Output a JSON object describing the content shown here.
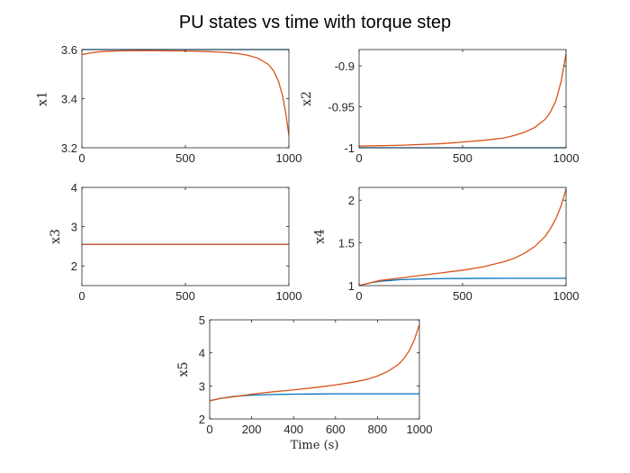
{
  "figure": {
    "title": "PU states vs time with torque step"
  },
  "colors": {
    "series1": "#0072BD",
    "series2": "#D95319",
    "axis": "#262626"
  },
  "chart_data": [
    {
      "type": "line",
      "ylabel": "x1",
      "xlabel": "",
      "xlim": [
        0,
        1000
      ],
      "ylim": [
        3.2,
        3.6
      ],
      "xticks": [
        0,
        500,
        1000
      ],
      "yticks": [
        3.2,
        3.4,
        3.6
      ],
      "xtick_labels": [
        "0",
        "500",
        "1000"
      ],
      "ytick_labels": [
        "3.2",
        "3.4",
        "3.6"
      ],
      "series": [
        {
          "x": [
            0,
            1000
          ],
          "y": [
            3.6,
            3.6
          ]
        },
        {
          "x": [
            0,
            50,
            100,
            200,
            300,
            400,
            500,
            600,
            700,
            750,
            800,
            850,
            900,
            925,
            950,
            970,
            985,
            1000
          ],
          "y": [
            3.58,
            3.587,
            3.592,
            3.595,
            3.596,
            3.595,
            3.594,
            3.592,
            3.588,
            3.584,
            3.577,
            3.565,
            3.54,
            3.515,
            3.47,
            3.41,
            3.34,
            3.25
          ]
        }
      ]
    },
    {
      "type": "line",
      "ylabel": "x2",
      "xlabel": "",
      "xlim": [
        0,
        1000
      ],
      "ylim": [
        -1.0,
        -0.88
      ],
      "xticks": [
        0,
        500,
        1000
      ],
      "yticks": [
        -1.0,
        -0.95,
        -0.9
      ],
      "xtick_labels": [
        "0",
        "500",
        "1000"
      ],
      "ytick_labels": [
        "-1",
        "-0.95",
        "-0.9"
      ],
      "series": [
        {
          "x": [
            0,
            1000
          ],
          "y": [
            -1.0,
            -1.0
          ]
        },
        {
          "x": [
            0,
            200,
            400,
            500,
            600,
            700,
            750,
            800,
            850,
            900,
            925,
            950,
            975,
            1000
          ],
          "y": [
            -0.998,
            -0.997,
            -0.995,
            -0.993,
            -0.991,
            -0.988,
            -0.985,
            -0.981,
            -0.975,
            -0.965,
            -0.956,
            -0.943,
            -0.92,
            -0.885
          ]
        }
      ]
    },
    {
      "type": "line",
      "ylabel": "x3",
      "xlabel": "",
      "xlim": [
        0,
        1000
      ],
      "ylim": [
        1.5,
        4.0
      ],
      "xticks": [
        0,
        500,
        1000
      ],
      "yticks": [
        2,
        3,
        4
      ],
      "xtick_labels": [
        "0",
        "500",
        "1000"
      ],
      "ytick_labels": [
        "2",
        "3",
        "4"
      ],
      "series": [
        {
          "x": [
            0,
            1000
          ],
          "y": [
            2.55,
            2.55
          ]
        },
        {
          "x": [
            0,
            1000
          ],
          "y": [
            2.55,
            2.55
          ]
        }
      ]
    },
    {
      "type": "line",
      "ylabel": "x4",
      "xlabel": "",
      "xlim": [
        0,
        1000
      ],
      "ylim": [
        1.0,
        2.15
      ],
      "xticks": [
        0,
        500,
        1000
      ],
      "yticks": [
        1,
        1.5,
        2
      ],
      "xtick_labels": [
        "0",
        "500",
        "1000"
      ],
      "ytick_labels": [
        "1",
        "1.5",
        "2"
      ],
      "series": [
        {
          "x": [
            0,
            50,
            100,
            150,
            200,
            300,
            400,
            500,
            600,
            700,
            800,
            900,
            1000
          ],
          "y": [
            1.0,
            1.03,
            1.05,
            1.06,
            1.07,
            1.078,
            1.082,
            1.084,
            1.085,
            1.086,
            1.086,
            1.086,
            1.086
          ]
        },
        {
          "x": [
            0,
            50,
            100,
            200,
            300,
            400,
            500,
            600,
            700,
            750,
            800,
            850,
            900,
            925,
            950,
            975,
            1000
          ],
          "y": [
            1.0,
            1.03,
            1.06,
            1.09,
            1.12,
            1.15,
            1.18,
            1.22,
            1.28,
            1.32,
            1.38,
            1.46,
            1.58,
            1.67,
            1.78,
            1.93,
            2.13
          ]
        }
      ]
    },
    {
      "type": "line",
      "ylabel": "x5",
      "xlabel": "Time (s)",
      "xlim": [
        0,
        1000
      ],
      "ylim": [
        2.0,
        5.0
      ],
      "xticks": [
        0,
        200,
        400,
        600,
        800,
        1000
      ],
      "yticks": [
        2,
        3,
        4,
        5
      ],
      "xtick_labels": [
        "0",
        "200",
        "400",
        "600",
        "800",
        "1000"
      ],
      "ytick_labels": [
        "2",
        "3",
        "4",
        "5"
      ],
      "series": [
        {
          "x": [
            0,
            50,
            100,
            150,
            200,
            300,
            400,
            500,
            600,
            700,
            800,
            900,
            1000
          ],
          "y": [
            2.55,
            2.62,
            2.67,
            2.7,
            2.72,
            2.74,
            2.75,
            2.755,
            2.76,
            2.76,
            2.76,
            2.76,
            2.76
          ]
        },
        {
          "x": [
            0,
            50,
            100,
            200,
            300,
            400,
            500,
            600,
            700,
            750,
            800,
            850,
            900,
            925,
            950,
            975,
            1000
          ],
          "y": [
            2.55,
            2.62,
            2.66,
            2.75,
            2.82,
            2.88,
            2.95,
            3.03,
            3.13,
            3.2,
            3.3,
            3.44,
            3.65,
            3.82,
            4.05,
            4.38,
            4.85
          ]
        }
      ]
    }
  ]
}
